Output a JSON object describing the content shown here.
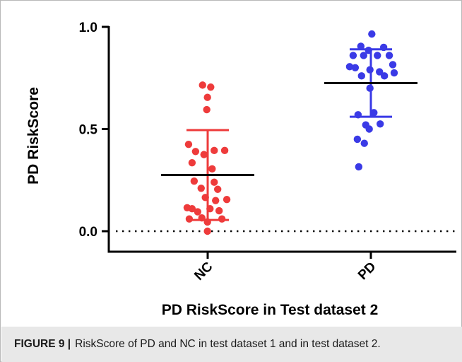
{
  "chart_data": {
    "type": "scatter",
    "title": "",
    "xlabel": "PD RiskScore in Test dataset 2",
    "ylabel": "PD RiskScore",
    "ylim": [
      0,
      1.0
    ],
    "yticks": [
      "0.0",
      "0.5",
      "1.0"
    ],
    "categories": [
      "NC",
      "PD"
    ],
    "reference_line": {
      "y": 0.0,
      "style": "dotted"
    },
    "colors": {
      "NC": "#ee3b3b",
      "PD": "#3a3ae6",
      "axis": "#000000"
    },
    "series": [
      {
        "category": "NC",
        "mean": 0.275,
        "sd_upper": 0.495,
        "sd_lower": 0.055,
        "points": [
          {
            "offset": -0.22,
            "y": 0.715
          },
          {
            "offset": 0.13,
            "y": 0.705
          },
          {
            "offset": -0.01,
            "y": 0.655
          },
          {
            "offset": -0.04,
            "y": 0.595
          },
          {
            "offset": -0.82,
            "y": 0.425
          },
          {
            "offset": -0.52,
            "y": 0.39
          },
          {
            "offset": 0.28,
            "y": 0.395
          },
          {
            "offset": -0.16,
            "y": 0.375
          },
          {
            "offset": 0.73,
            "y": 0.395
          },
          {
            "offset": -0.67,
            "y": 0.335
          },
          {
            "offset": 0.19,
            "y": 0.305
          },
          {
            "offset": -0.58,
            "y": 0.245
          },
          {
            "offset": 0.28,
            "y": 0.24
          },
          {
            "offset": -0.28,
            "y": 0.21
          },
          {
            "offset": 0.43,
            "y": 0.205
          },
          {
            "offset": -0.1,
            "y": 0.165
          },
          {
            "offset": 0.82,
            "y": 0.155
          },
          {
            "offset": 0.34,
            "y": 0.15
          },
          {
            "offset": -0.88,
            "y": 0.115
          },
          {
            "offset": -0.67,
            "y": 0.11
          },
          {
            "offset": 0.1,
            "y": 0.11
          },
          {
            "offset": -0.43,
            "y": 0.095
          },
          {
            "offset": 0.49,
            "y": 0.1
          },
          {
            "offset": -0.25,
            "y": 0.065
          },
          {
            "offset": -0.79,
            "y": 0.06
          },
          {
            "offset": 0.61,
            "y": 0.06
          },
          {
            "offset": -0.01,
            "y": 0.045
          },
          {
            "offset": -0.01,
            "y": 0.0
          }
        ]
      },
      {
        "category": "PD",
        "mean": 0.725,
        "sd_upper": 0.89,
        "sd_lower": 0.56,
        "points": [
          {
            "offset": 0.04,
            "y": 0.965
          },
          {
            "offset": -0.43,
            "y": 0.905
          },
          {
            "offset": 0.55,
            "y": 0.9
          },
          {
            "offset": -0.1,
            "y": 0.885
          },
          {
            "offset": -0.76,
            "y": 0.86
          },
          {
            "offset": -0.31,
            "y": 0.86
          },
          {
            "offset": 0.28,
            "y": 0.86
          },
          {
            "offset": 0.79,
            "y": 0.86
          },
          {
            "offset": -0.91,
            "y": 0.805
          },
          {
            "offset": -0.67,
            "y": 0.8
          },
          {
            "offset": 0.94,
            "y": 0.815
          },
          {
            "offset": -0.04,
            "y": 0.79
          },
          {
            "offset": 0.37,
            "y": 0.78
          },
          {
            "offset": 1.0,
            "y": 0.775
          },
          {
            "offset": -0.4,
            "y": 0.76
          },
          {
            "offset": 0.58,
            "y": 0.76
          },
          {
            "offset": -0.04,
            "y": 0.7
          },
          {
            "offset": -0.55,
            "y": 0.57
          },
          {
            "offset": 0.13,
            "y": 0.58
          },
          {
            "offset": -0.22,
            "y": 0.52
          },
          {
            "offset": 0.4,
            "y": 0.525
          },
          {
            "offset": -0.07,
            "y": 0.5
          },
          {
            "offset": -0.58,
            "y": 0.45
          },
          {
            "offset": -0.28,
            "y": 0.43
          },
          {
            "offset": -0.52,
            "y": 0.315
          }
        ]
      }
    ]
  },
  "caption": {
    "label": "FIGURE 9 |",
    "text": "RiskScore of PD and NC in test dataset 1 and in test dataset 2."
  }
}
